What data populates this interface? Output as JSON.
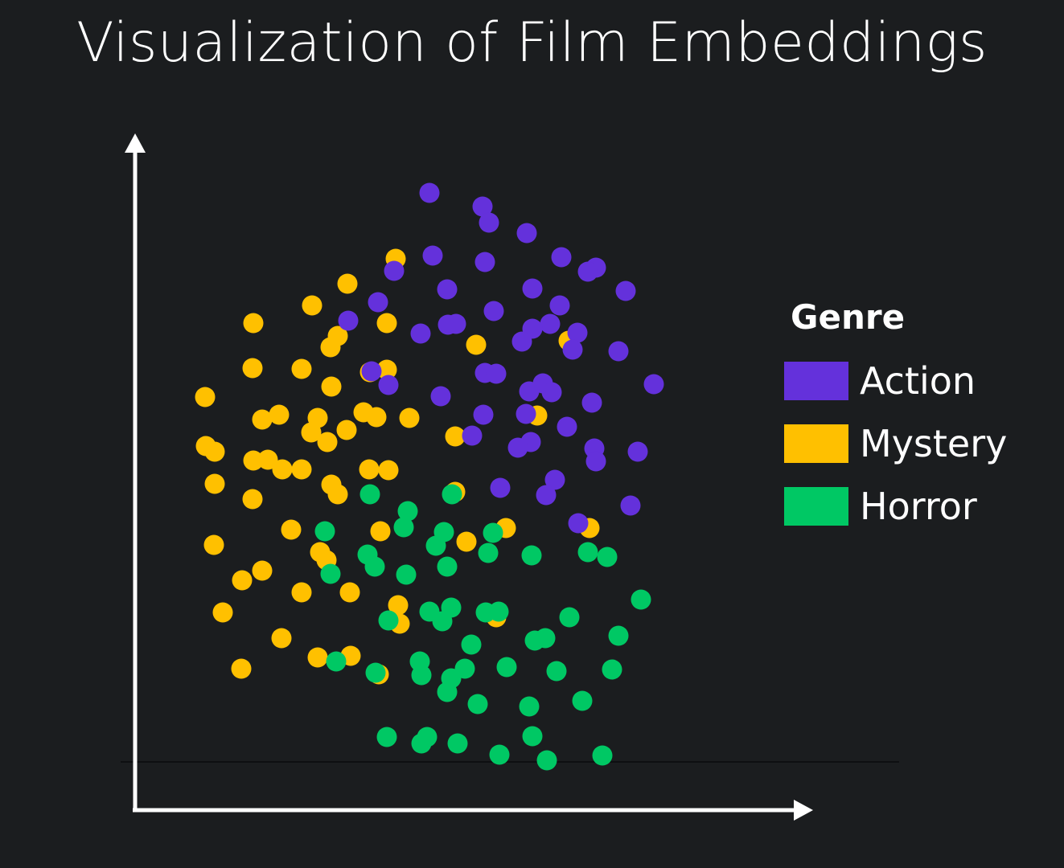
{
  "colors": {
    "background": "#1b1d1f",
    "axis": "#ffffff",
    "Action": "#6431db",
    "Mystery": "#ffc000",
    "Horror": "#00c864"
  },
  "chart_data": {
    "type": "scatter",
    "title": "Visualization of Film Embeddings",
    "xlabel": "",
    "ylabel": "",
    "xlim": [
      0,
      1000
    ],
    "ylim": [
      0,
      1000
    ],
    "axis_ticks": false,
    "grid": false,
    "legend": {
      "title": "Genre",
      "placement": "right"
    },
    "series": [
      {
        "name": "Action",
        "color": "#6431db",
        "points": [
          [
            534,
            840
          ],
          [
            600,
            823
          ],
          [
            608,
            803
          ],
          [
            655,
            790
          ],
          [
            538,
            762
          ],
          [
            698,
            760
          ],
          [
            603,
            754
          ],
          [
            741,
            747
          ],
          [
            490,
            743
          ],
          [
            731,
            742
          ],
          [
            556,
            720
          ],
          [
            662,
            721
          ],
          [
            778,
            718
          ],
          [
            470,
            704
          ],
          [
            696,
            700
          ],
          [
            614,
            693
          ],
          [
            433,
            681
          ],
          [
            567,
            677
          ],
          [
            557,
            676
          ],
          [
            684,
            677
          ],
          [
            662,
            671
          ],
          [
            523,
            665
          ],
          [
            718,
            666
          ],
          [
            649,
            655
          ],
          [
            712,
            645
          ],
          [
            769,
            643
          ],
          [
            462,
            618
          ],
          [
            603,
            616
          ],
          [
            617,
            615
          ],
          [
            675,
            603
          ],
          [
            483,
            601
          ],
          [
            813,
            602
          ],
          [
            658,
            593
          ],
          [
            686,
            592
          ],
          [
            548,
            587
          ],
          [
            736,
            579
          ],
          [
            601,
            564
          ],
          [
            654,
            565
          ],
          [
            705,
            549
          ],
          [
            587,
            538
          ],
          [
            660,
            530
          ],
          [
            644,
            523
          ],
          [
            739,
            522
          ],
          [
            793,
            518
          ],
          [
            741,
            506
          ],
          [
            690,
            483
          ],
          [
            622,
            473
          ],
          [
            679,
            464
          ],
          [
            784,
            451
          ],
          [
            719,
            429
          ]
        ]
      },
      {
        "name": "Mystery",
        "color": "#ffc000",
        "points": [
          [
            492,
            758
          ],
          [
            432,
            727
          ],
          [
            388,
            700
          ],
          [
            315,
            678
          ],
          [
            481,
            678
          ],
          [
            420,
            662
          ],
          [
            411,
            648
          ],
          [
            707,
            656
          ],
          [
            592,
            651
          ],
          [
            314,
            622
          ],
          [
            375,
            621
          ],
          [
            481,
            620
          ],
          [
            460,
            617
          ],
          [
            412,
            599
          ],
          [
            255,
            586
          ],
          [
            452,
            567
          ],
          [
            347,
            564
          ],
          [
            326,
            558
          ],
          [
            395,
            560
          ],
          [
            468,
            561
          ],
          [
            509,
            560
          ],
          [
            668,
            563
          ],
          [
            431,
            545
          ],
          [
            387,
            542
          ],
          [
            566,
            537
          ],
          [
            407,
            530
          ],
          [
            256,
            525
          ],
          [
            267,
            518
          ],
          [
            315,
            507
          ],
          [
            333,
            508
          ],
          [
            351,
            496
          ],
          [
            375,
            496
          ],
          [
            459,
            496
          ],
          [
            483,
            495
          ],
          [
            267,
            478
          ],
          [
            412,
            477
          ],
          [
            420,
            465
          ],
          [
            314,
            459
          ],
          [
            566,
            468
          ],
          [
            629,
            423
          ],
          [
            733,
            423
          ],
          [
            362,
            421
          ],
          [
            473,
            419
          ],
          [
            580,
            406
          ],
          [
            266,
            402
          ],
          [
            398,
            393
          ],
          [
            406,
            383
          ],
          [
            326,
            370
          ],
          [
            301,
            358
          ],
          [
            375,
            343
          ],
          [
            435,
            343
          ],
          [
            495,
            327
          ],
          [
            277,
            318
          ],
          [
            617,
            312
          ],
          [
            497,
            304
          ],
          [
            350,
            286
          ],
          [
            436,
            264
          ],
          [
            395,
            262
          ],
          [
            300,
            248
          ],
          [
            471,
            241
          ]
        ]
      },
      {
        "name": "Horror",
        "color": "#00c864",
        "points": [
          [
            460,
            465
          ],
          [
            562,
            465
          ],
          [
            507,
            444
          ],
          [
            404,
            419
          ],
          [
            502,
            424
          ],
          [
            552,
            418
          ],
          [
            613,
            417
          ],
          [
            542,
            401
          ],
          [
            457,
            390
          ],
          [
            607,
            392
          ],
          [
            661,
            389
          ],
          [
            731,
            393
          ],
          [
            755,
            387
          ],
          [
            466,
            375
          ],
          [
            556,
            375
          ],
          [
            411,
            366
          ],
          [
            505,
            365
          ],
          [
            797,
            334
          ],
          [
            561,
            324
          ],
          [
            534,
            319
          ],
          [
            604,
            318
          ],
          [
            620,
            319
          ],
          [
            483,
            308
          ],
          [
            550,
            307
          ],
          [
            708,
            312
          ],
          [
            769,
            289
          ],
          [
            665,
            283
          ],
          [
            678,
            286
          ],
          [
            586,
            278
          ],
          [
            418,
            257
          ],
          [
            522,
            257
          ],
          [
            630,
            250
          ],
          [
            578,
            248
          ],
          [
            692,
            245
          ],
          [
            761,
            247
          ],
          [
            467,
            243
          ],
          [
            524,
            240
          ],
          [
            561,
            236
          ],
          [
            556,
            219
          ],
          [
            594,
            204
          ],
          [
            724,
            208
          ],
          [
            658,
            201
          ],
          [
            481,
            163
          ],
          [
            531,
            163
          ],
          [
            662,
            164
          ],
          [
            524,
            155
          ],
          [
            569,
            155
          ],
          [
            621,
            141
          ],
          [
            680,
            134
          ],
          [
            749,
            140
          ]
        ]
      }
    ]
  }
}
